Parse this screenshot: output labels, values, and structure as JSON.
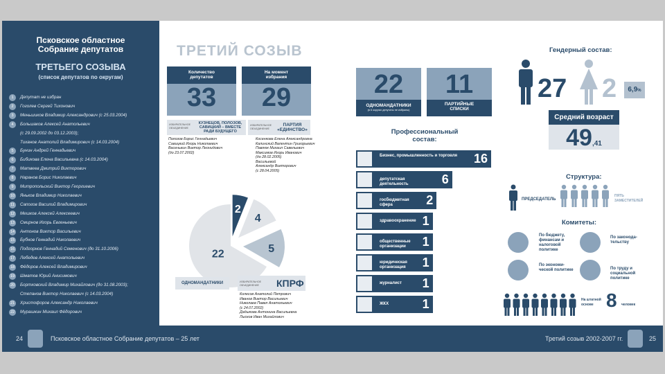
{
  "sidebar": {
    "title_1": "Псковское областное",
    "title_2": "Собрание депутатов",
    "subtitle": "ТРЕТЬЕГО СОЗЫВА",
    "subtitle_2": "(список депутатов по округам)",
    "deputies": [
      {
        "n": "1",
        "t": "Депутат не избран"
      },
      {
        "n": "2",
        "t": "Гоголев Сергей Тихонович"
      },
      {
        "n": "3",
        "t": "Меньшиков Владимир Александрович (с 25.03.2004)"
      },
      {
        "n": "4",
        "t": "Большаков Алексей Анатольевич"
      },
      {
        "n": "",
        "t": "(с 29.09.2002 до 03.12.2003);"
      },
      {
        "n": "",
        "t": "Тиханов Анатолий Владимирович (с 14.03.2004)"
      },
      {
        "n": "5",
        "t": "Бунин Андрей Геннадьевич"
      },
      {
        "n": "6",
        "t": "Бибикова Елена Васильевна (с 14.03.2004)"
      },
      {
        "n": "7",
        "t": "Матвеев Дмитрий Викторович"
      },
      {
        "n": "8",
        "t": "Наранов Борис Николаевич"
      },
      {
        "n": "9",
        "t": "Митропольский Виктор Георгиевич"
      },
      {
        "n": "10",
        "t": "Яньков Владимир Николаевич"
      },
      {
        "n": "11",
        "t": "Сапогов Василий Владимирович"
      },
      {
        "n": "12",
        "t": "Мешков Алексей Алексеевич"
      },
      {
        "n": "13",
        "t": "Смирнов Игорь Евгеньевич"
      },
      {
        "n": "14",
        "t": "Антонов Виктор Васильевич"
      },
      {
        "n": "15",
        "t": "Бубнов Геннадий Николаевич"
      },
      {
        "n": "16",
        "t": "Подгорнов Геннадий Семенович (до 31.10.2006)"
      },
      {
        "n": "17",
        "t": "Лебедев Алексей Анатольевич"
      },
      {
        "n": "18",
        "t": "Фёдоров Алексей Владимирович"
      },
      {
        "n": "19",
        "t": "Шматов Юрий Анисимович"
      },
      {
        "n": "20",
        "t": "Бортковский Владимир Михайлович (до 31.08.2003);"
      },
      {
        "n": "",
        "t": "Степанов Виктор Николаевич (с 14.03.2004)"
      },
      {
        "n": "21",
        "t": "Христофоров Александр Николаевич"
      },
      {
        "n": "22",
        "t": "Мурашкин Михаил Фёдорович"
      }
    ]
  },
  "footer": {
    "left_page": "24",
    "left_text": "Псковское областное Собрание депутатов – 25 лет",
    "right_text": "Третий созыв 2002-2007 гг.",
    "right_page": "25"
  },
  "main": {
    "heading": "ТРЕТИЙ СОЗЫВ",
    "box1_label": "Количество депутатов",
    "box1_value": "33",
    "box2_label": "На момент избрания",
    "box2_value": "29",
    "assoc_small": "ИЗБИРАТЕЛЬНОЕ ОБЪЕДИНЕНИЕ",
    "assoc1": "КУЗНЕЦОВ, ПОЛОЗОВ, САВИЦКИЙ – ВМЕСТЕ РАДИ БУДУЩЕГО",
    "assoc2": "ПАРТИЯ «ЕДИНСТВО»",
    "assoc3": "КПРФ",
    "names1": [
      "Полозов Борис Геннадьевич",
      "Савицкий Игорь Николаевич",
      "Васенькин Виктор Леонидович",
      "(до 23.07.2002)"
    ],
    "names2": [
      "Косенкова Елена Александровна",
      "Калинский Валентин Григорьевич",
      "Павлюк Михаил Савельевич",
      "Максимов Игорь Иванович",
      "(до 28.02.2005)",
      "Васильевой",
      "Александр Викторович",
      "(с 28.04.2005)"
    ],
    "names3": [
      "Колесов Анатолий Петрович",
      "Иванов Виктор Васильевич",
      "Николаев Павел Анатольевич",
      "(с 24.07.2002)",
      "Дадыкова Антонина Васильевна",
      "Лысков Иван Михайлович"
    ],
    "odno_label": "ОДНОМАНДАТНИКИ"
  },
  "chart_data": {
    "type": "pie",
    "categories": [
      "Одномандатники",
      "Кузнецов, Полозов, Савицкий – вместе ради будущего",
      "Партия «Единство»",
      "КПРФ"
    ],
    "values": [
      22,
      2,
      4,
      5
    ]
  },
  "stats": {
    "single_value": "22",
    "single_label": "ОДНОМАНДАТНИКИ",
    "single_sub": "(в 6 округах депутаты не избраны)",
    "party_value": "11",
    "party_label": "ПАРТИЙНЫЕ СПИСКИ",
    "prof_title": "Профессиональный состав:",
    "prof": [
      {
        "l": "Бизнес, промышленность и торговля",
        "v": "16"
      },
      {
        "l": "депутатская деятельность",
        "v": "6"
      },
      {
        "l": "госбюджетная сфера",
        "v": "2"
      },
      {
        "l": "здравоохранение",
        "v": "1"
      },
      {
        "l": "общественные организации",
        "v": "1"
      },
      {
        "l": "юридическая организация",
        "v": "1"
      },
      {
        "l": "журналист",
        "v": "1"
      },
      {
        "l": "ЖКХ",
        "v": "1"
      }
    ]
  },
  "right": {
    "gender_title": "Гендерный состав:",
    "men": "27",
    "women": "2",
    "women_pct": "6,9",
    "women_pct_sign": "%",
    "age_title": "Средний возраст",
    "age_int": "49",
    "age_frac": ",41",
    "structure_title": "Структура:",
    "chairman": "ПРЕДСЕДАТЕЛЬ",
    "deputies5": "ПЯТЬ ЗАМЕСТИТЕЛЕЙ",
    "committees_title": "Комитеты:",
    "committees": [
      "По бюджету, финансам и налоговой политике",
      "По законода-тельству",
      "По экономи-ческой политике",
      "По труду и социальной политике"
    ],
    "staff_label": "На штатной основе",
    "staff_value": "8",
    "staff_unit": "человек"
  }
}
